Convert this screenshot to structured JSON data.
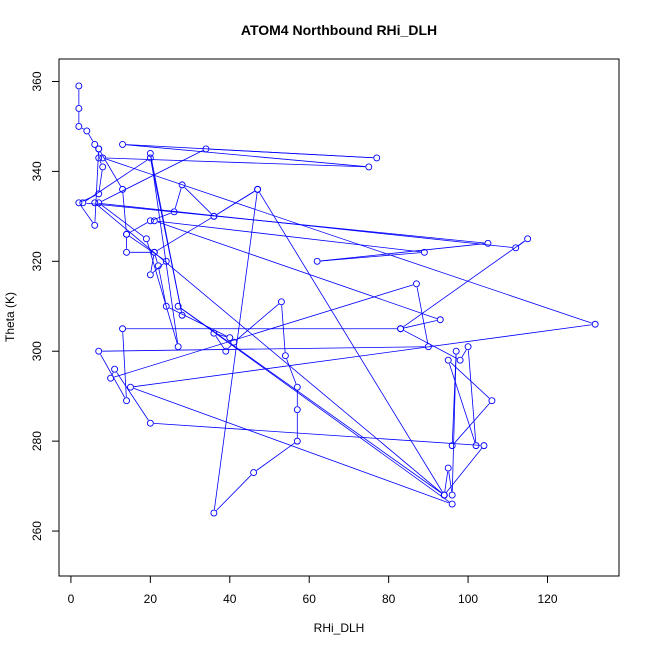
{
  "chart_data": {
    "type": "line",
    "title": "ATOM4 Northbound RHi_DLH",
    "xlabel": "RHi_DLH",
    "ylabel": "Theta (K)",
    "xlim": [
      -3,
      138
    ],
    "ylim": [
      250,
      365
    ],
    "x_ticks": [
      0,
      20,
      40,
      60,
      80,
      100,
      120
    ],
    "y_ticks": [
      260,
      280,
      300,
      320,
      340,
      360
    ],
    "grid": false,
    "line_color": "#0000ff",
    "marker": "open-circle",
    "series": [
      {
        "x": [
          2,
          2,
          2,
          4,
          6,
          7,
          7,
          8,
          7,
          2,
          6,
          7,
          13,
          14,
          20,
          26,
          28,
          36,
          47,
          36,
          21,
          14,
          14,
          24,
          20,
          21,
          22,
          24,
          40,
          36,
          39,
          41,
          53,
          54,
          57,
          57,
          57,
          46,
          36,
          47,
          94,
          95,
          96,
          97,
          96,
          106,
          95,
          102,
          100,
          98,
          83,
          13,
          14,
          7,
          90,
          87,
          10,
          11,
          20,
          104,
          94,
          6,
          112,
          115,
          83,
          93,
          21,
          89,
          62,
          105,
          3,
          20,
          28,
          20,
          27,
          19,
          7,
          34,
          77,
          13,
          75,
          8,
          132,
          15,
          96,
          27,
          94
        ],
        "y": [
          359,
          354,
          350,
          349,
          346,
          345,
          343,
          341,
          335,
          333,
          328,
          345,
          336,
          326,
          329,
          331,
          337,
          330,
          336,
          330,
          322,
          322,
          326,
          320,
          317,
          322,
          319,
          310,
          303,
          304,
          300,
          302,
          311,
          299,
          292,
          287,
          280,
          273,
          264,
          336,
          268,
          274,
          268,
          300,
          279,
          289,
          298,
          279,
          301,
          298,
          305,
          305,
          289,
          300,
          301,
          315,
          294,
          296,
          284,
          279,
          268,
          333,
          323,
          325,
          305,
          307,
          329,
          322,
          320,
          324,
          333,
          343,
          308,
          344,
          301,
          325,
          333,
          345,
          343,
          346,
          341,
          343,
          306,
          292,
          266,
          310,
          268
        ]
      }
    ]
  }
}
